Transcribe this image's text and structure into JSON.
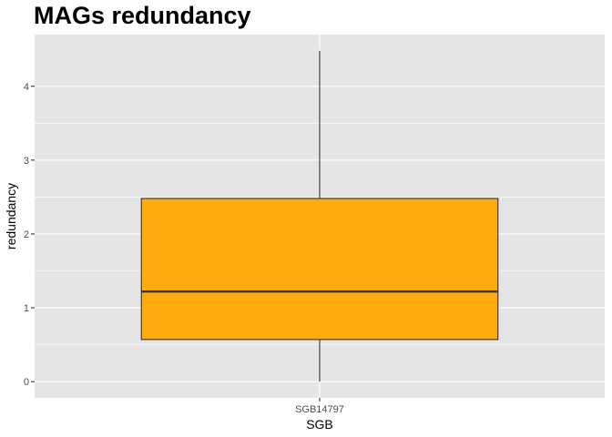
{
  "chart_data": {
    "type": "box",
    "title": "MAGs redundancy",
    "xlabel": "SGB",
    "ylabel": "redundancy",
    "categories": [
      "SGB14797"
    ],
    "boxes": [
      {
        "category": "SGB14797",
        "min": 0.0,
        "q1": 0.57,
        "median": 1.22,
        "q3": 2.48,
        "max": 4.48
      }
    ],
    "ylim": [
      -0.22,
      4.7
    ],
    "yticks": [
      0,
      1,
      2,
      3,
      4
    ],
    "grid": true,
    "colors": {
      "panel_background": "#E5E5E5",
      "grid_line": "#FFFFFF",
      "box_fill": "#FFAB0F",
      "box_stroke": "#333333"
    }
  }
}
